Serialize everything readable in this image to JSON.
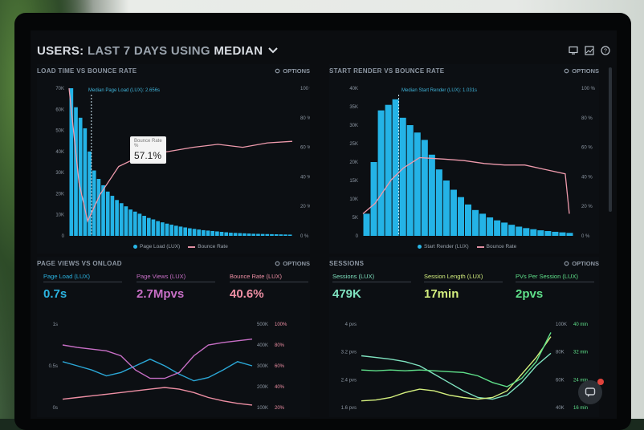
{
  "header": {
    "prefix": "USERS:",
    "range": "LAST 7 DAYS",
    "using": "USING",
    "stat": "MEDIAN"
  },
  "panels": {
    "load_vs_bounce": {
      "title": "LOAD TIME VS BOUNCE RATE",
      "options": "OPTIONS",
      "annotation": "Median Page Load (LUX): 2.656s",
      "tooltip_label": "Bounce Rate",
      "tooltip_sub": "%",
      "tooltip_value": "57.1%",
      "legend": [
        "Page Load (LUX)",
        "Bounce Rate"
      ]
    },
    "render_vs_bounce": {
      "title": "START RENDER VS BOUNCE RATE",
      "options": "OPTIONS",
      "annotation": "Median Start Render (LUX): 1.031s",
      "legend": [
        "Start Render (LUX)",
        "Bounce Rate"
      ]
    },
    "pageviews": {
      "title": "PAGE VIEWS VS ONLOAD",
      "options": "OPTIONS",
      "metrics": [
        {
          "label": "Page Load (LUX)",
          "value": "0.7s",
          "color": "#2bb3e0"
        },
        {
          "label": "Page Views (LUX)",
          "value": "2.7Mpvs",
          "color": "#c86fc6"
        },
        {
          "label": "Bounce Rate (LUX)",
          "value": "40.6%",
          "color": "#ee8fa4"
        }
      ]
    },
    "sessions": {
      "title": "SESSIONS",
      "options": "OPTIONS",
      "metrics": [
        {
          "label": "Sessions (LUX)",
          "value": "479K",
          "color": "#7fe3c0"
        },
        {
          "label": "Session Length (LUX)",
          "value": "17min",
          "color": "#d4ef7e"
        },
        {
          "label": "PVs Per Session (LUX)",
          "value": "2pvs",
          "color": "#5fe08a"
        }
      ]
    }
  },
  "chart_data": [
    {
      "type": "bar",
      "title": "LOAD TIME VS BOUNCE RATE",
      "x_ticks": [
        "0",
        "2.5",
        "5",
        "7.5",
        "10",
        "12.5",
        "15",
        "17.5"
      ],
      "y_ticks_left": [
        "70K",
        "60K",
        "50K",
        "40K",
        "30K",
        "20K",
        "10K",
        "0"
      ],
      "y_ticks_right": [
        "100 %",
        "80 %",
        "60 %",
        "40 %",
        "20 %",
        "0 %"
      ],
      "ylim": [
        0,
        70000
      ],
      "series": [
        {
          "name": "Page Load (LUX)",
          "values": [
            70000,
            61000,
            56000,
            51000,
            40000,
            31000,
            27000,
            24000,
            21000,
            19000,
            17000,
            15500,
            14000,
            12500,
            11500,
            10500,
            9500,
            8500,
            7800,
            7000,
            6400,
            5800,
            5300,
            4800,
            4400,
            4000,
            3600,
            3300,
            3000,
            2700,
            2500,
            2300,
            2100,
            1900,
            1700,
            1500,
            1400,
            1300,
            1200,
            1100,
            1000,
            950,
            900,
            850,
            800,
            750,
            700,
            650,
            600
          ]
        },
        {
          "name": "Bounce Rate",
          "y_range": [
            0,
            100
          ],
          "points": [
            [
              0,
              100
            ],
            [
              0.8,
              36
            ],
            [
              1.5,
              10
            ],
            [
              2.5,
              28
            ],
            [
              4,
              47
            ],
            [
              6,
              55
            ],
            [
              8,
              57.1
            ],
            [
              10,
              60
            ],
            [
              12,
              62
            ],
            [
              14,
              60
            ],
            [
              16,
              63
            ],
            [
              18,
              64
            ]
          ]
        }
      ]
    },
    {
      "type": "bar",
      "title": "START RENDER VS BOUNCE RATE",
      "x_ticks": [
        "0",
        "1",
        "2",
        "3",
        "4",
        "5"
      ],
      "y_ticks_left": [
        "40K",
        "35K",
        "30K",
        "25K",
        "20K",
        "15K",
        "10K",
        "5K",
        "0"
      ],
      "y_ticks_right": [
        "100 %",
        "80 %",
        "60 %",
        "40 %",
        "20 %",
        "0 %"
      ],
      "ylim": [
        0,
        40000
      ],
      "series": [
        {
          "name": "Start Render (LUX)",
          "values": [
            6000,
            20000,
            34000,
            35500,
            37000,
            32000,
            30000,
            28000,
            26000,
            22000,
            18000,
            15000,
            12500,
            10500,
            8500,
            7000,
            6000,
            5000,
            4200,
            3600,
            3000,
            2500,
            2100,
            1800,
            1500,
            1300,
            1100,
            950,
            800
          ]
        },
        {
          "name": "Bounce Rate",
          "y_range": [
            0,
            100
          ],
          "points": [
            [
              0,
              15
            ],
            [
              0.3,
              22
            ],
            [
              0.7,
              38
            ],
            [
              1,
              46
            ],
            [
              1.4,
              53
            ],
            [
              2,
              52
            ],
            [
              2.5,
              51
            ],
            [
              3,
              49
            ],
            [
              3.5,
              48
            ],
            [
              4,
              48
            ],
            [
              4.5,
              45
            ],
            [
              5,
              42
            ],
            [
              5.1,
              15
            ]
          ]
        }
      ]
    },
    {
      "type": "line",
      "title": "PAGE VIEWS VS ONLOAD",
      "y_ticks_left": [
        "1s",
        "0.5s",
        "0s"
      ],
      "y_ticks_right_1": [
        "500K",
        "400K",
        "300K",
        "200K",
        "100K"
      ],
      "y_ticks_right_2": [
        "100%",
        "80%",
        "60%",
        "40%",
        "20%"
      ],
      "series": [
        {
          "name": "Page Load (LUX)",
          "values": [
            0.55,
            0.5,
            0.45,
            0.38,
            0.42,
            0.5,
            0.58,
            0.5,
            0.4,
            0.32,
            0.36,
            0.45,
            0.55,
            0.5
          ]
        },
        {
          "name": "Page Views (LUX)",
          "values": [
            0.75,
            0.72,
            0.7,
            0.68,
            0.62,
            0.45,
            0.35,
            0.35,
            0.42,
            0.62,
            0.75,
            0.78,
            0.8,
            0.82
          ]
        },
        {
          "name": "Bounce Rate (LUX)",
          "values": [
            0.1,
            0.12,
            0.14,
            0.16,
            0.18,
            0.2,
            0.22,
            0.24,
            0.22,
            0.18,
            0.12,
            0.08,
            0.05,
            0.03
          ]
        }
      ]
    },
    {
      "type": "line",
      "title": "SESSIONS",
      "y_ticks_left": [
        "4 pvs",
        "3.2 pvs",
        "2.4 pvs",
        "1.6 pvs"
      ],
      "y_ticks_right_1": [
        "100K",
        "80K",
        "60K",
        "40K"
      ],
      "y_ticks_right_2": [
        "40 min",
        "32 min",
        "24 min",
        "16 min"
      ],
      "series": [
        {
          "name": "Sessions (LUX)",
          "values": [
            0.62,
            0.6,
            0.58,
            0.55,
            0.5,
            0.4,
            0.3,
            0.2,
            0.12,
            0.1,
            0.15,
            0.3,
            0.5,
            0.65
          ]
        },
        {
          "name": "Session Length (LUX)",
          "values": [
            0.08,
            0.09,
            0.12,
            0.18,
            0.22,
            0.2,
            0.15,
            0.12,
            0.1,
            0.12,
            0.2,
            0.4,
            0.6,
            0.85
          ]
        },
        {
          "name": "PVs Per Session (LUX)",
          "values": [
            0.45,
            0.44,
            0.45,
            0.44,
            0.45,
            0.44,
            0.43,
            0.42,
            0.38,
            0.3,
            0.25,
            0.35,
            0.55,
            0.9
          ]
        }
      ]
    }
  ]
}
